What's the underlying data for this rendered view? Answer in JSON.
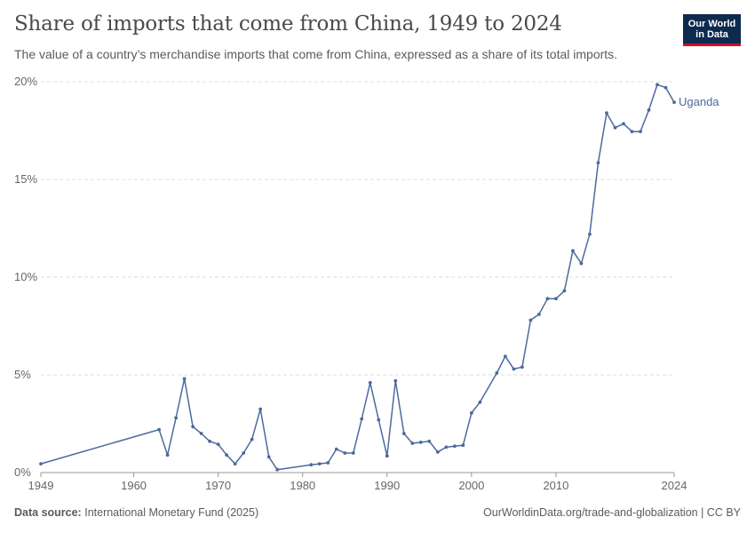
{
  "header": {
    "title": "Share of imports that come from China, 1949 to 2024",
    "subtitle": "The value of a country’s merchandise imports that come from China, expressed as a share of its total imports.",
    "logo_line1": "Our World",
    "logo_line2": "in Data"
  },
  "footer": {
    "source_label": "Data source:",
    "source_text": "International Monetary Fund (2025)",
    "link_text": "OurWorldinData.org/trade-and-globalization | CC BY"
  },
  "colors": {
    "series": "#4c6a9c",
    "grid": "#dddddd",
    "axis": "#999999"
  },
  "chart_data": {
    "type": "line",
    "title": "Share of imports that come from China, 1949 to 2024",
    "xlim": [
      1949,
      2024
    ],
    "ylim": [
      0,
      20
    ],
    "x_ticks": [
      1949,
      1960,
      1970,
      1980,
      1990,
      2000,
      2010,
      2024
    ],
    "y_ticks": [
      0,
      5,
      10,
      15,
      20
    ],
    "y_tick_labels": [
      "0%",
      "5%",
      "10%",
      "15%",
      "20%"
    ],
    "grid": "horizontal dashed",
    "series": [
      {
        "name": "Uganda",
        "x": [
          1949,
          1963,
          1964,
          1965,
          1966,
          1967,
          1968,
          1969,
          1970,
          1971,
          1972,
          1973,
          1974,
          1975,
          1976,
          1977,
          1981,
          1982,
          1983,
          1984,
          1985,
          1986,
          1987,
          1988,
          1989,
          1990,
          1991,
          1992,
          1993,
          1994,
          1995,
          1996,
          1997,
          1998,
          1999,
          2000,
          2001,
          2003,
          2004,
          2005,
          2006,
          2007,
          2008,
          2009,
          2010,
          2011,
          2012,
          2013,
          2014,
          2015,
          2016,
          2017,
          2018,
          2019,
          2020,
          2021,
          2022,
          2023,
          2024
        ],
        "values": [
          0.45,
          2.2,
          0.9,
          2.8,
          4.8,
          2.35,
          2.0,
          1.6,
          1.45,
          0.9,
          0.45,
          1.0,
          1.7,
          3.25,
          0.8,
          0.15,
          0.4,
          0.45,
          0.5,
          1.2,
          1.0,
          1.0,
          2.75,
          4.6,
          2.7,
          0.85,
          4.7,
          2.0,
          1.5,
          1.55,
          1.6,
          1.05,
          1.3,
          1.35,
          1.4,
          3.05,
          3.6,
          5.1,
          5.95,
          5.3,
          5.4,
          7.8,
          8.1,
          8.9,
          8.9,
          9.3,
          11.35,
          10.7,
          12.2,
          15.85,
          18.4,
          17.65,
          17.85,
          17.45,
          17.45,
          18.55,
          19.85,
          19.7,
          18.95
        ]
      }
    ]
  }
}
